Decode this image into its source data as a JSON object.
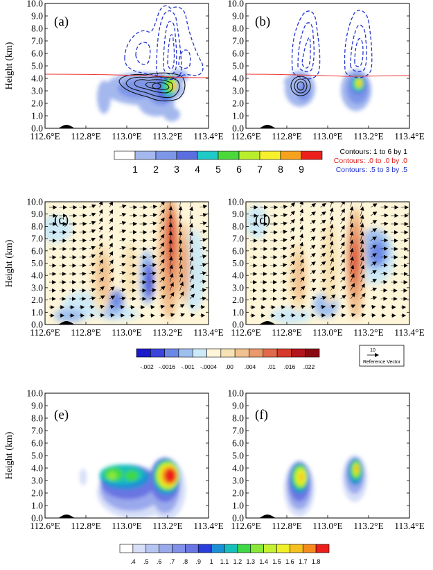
{
  "y_axis_label": "Height (km)",
  "y_ticks": [
    "0.0",
    "1.0",
    "2.0",
    "3.0",
    "4.0",
    "5.0",
    "6.0",
    "7.0",
    "8.0",
    "9.0",
    "10.0"
  ],
  "x_ticks": [
    "112.6°E",
    "112.8°E",
    "113.0°E",
    "113.2°E",
    "113.4°E"
  ],
  "panel_labels": [
    "(a)",
    "(b)",
    "(c)",
    "(d)",
    "(e)",
    "(f)"
  ],
  "colorbar_top": {
    "labels": [
      "1",
      "2",
      "3",
      "4",
      "5",
      "6",
      "7",
      "8",
      "9"
    ],
    "colors": [
      "#ffffff",
      "#a4b8ee",
      "#7e96e8",
      "#5a6ee0",
      "#1fc9c6",
      "#4bd83b",
      "#b9ee2c",
      "#f7f02a",
      "#f7a21e",
      "#ec1f1c"
    ]
  },
  "contour_notes": {
    "black": "Contours: 1 to 6 by 1",
    "red": "Contours: .0 to .0 by .0",
    "blue": "Contours: .5 to 3 by .5"
  },
  "colorbar_mid": {
    "labels": [
      "-.002",
      "-.0016",
      "-.001",
      "-.0004",
      ".00",
      ".004",
      ".01",
      ".016",
      ".022"
    ],
    "colors": [
      "#1a1acb",
      "#3a44dc",
      "#6a88e6",
      "#9ec0ef",
      "#cdeaf6",
      "#fff5d8",
      "#f8e2b4",
      "#f1c18f",
      "#e9996b",
      "#e06a4a",
      "#d63a2a",
      "#b2151c",
      "#8a0a14"
    ]
  },
  "reference_vector": {
    "value": "10",
    "label": "Reference Vector"
  },
  "colorbar_bottom": {
    "labels": [
      ".4",
      ".5",
      ".6",
      ".7",
      ".8",
      ".9",
      "1",
      "1.1",
      "1.2",
      "1.3",
      "1.4",
      "1.5",
      "1.6",
      "1.7",
      "1.8"
    ],
    "colors": [
      "#ffffff",
      "#d6def8",
      "#b6c4f2",
      "#9aa9ec",
      "#8190e8",
      "#6a74e2",
      "#2a3ddd",
      "#1b8fd6",
      "#17bfbc",
      "#3ed846",
      "#8ae838",
      "#c4f030",
      "#f0f028",
      "#f5c021",
      "#f58a1d",
      "#eb1f1c"
    ]
  },
  "chart_data": [
    {
      "panel": "(a)",
      "type": "heatmap",
      "xlim": [
        112.6,
        113.4
      ],
      "ylim": [
        0,
        10
      ],
      "ylabel": "Height (km)",
      "overlays": [
        "black solid contours",
        "blue dashed contours",
        "red line ~4.2 km"
      ]
    },
    {
      "panel": "(b)",
      "type": "heatmap",
      "xlim": [
        112.6,
        113.4
      ],
      "ylim": [
        0,
        10
      ],
      "overlays": [
        "black solid contours",
        "blue dashed contours",
        "red line ~4.2 km"
      ]
    },
    {
      "panel": "(c)",
      "type": "heatmap",
      "xlim": [
        112.6,
        113.4
      ],
      "ylim": [
        0,
        10
      ],
      "ylabel": "Height (km)",
      "overlays": [
        "wind vectors"
      ]
    },
    {
      "panel": "(d)",
      "type": "heatmap",
      "xlim": [
        112.6,
        113.4
      ],
      "ylim": [
        0,
        10
      ],
      "overlays": [
        "wind vectors"
      ]
    },
    {
      "panel": "(e)",
      "type": "heatmap",
      "xlim": [
        112.6,
        113.4
      ],
      "ylim": [
        0,
        10
      ],
      "ylabel": "Height (km)"
    },
    {
      "panel": "(f)",
      "type": "heatmap",
      "xlim": [
        112.6,
        113.4
      ],
      "ylim": [
        0,
        10
      ]
    }
  ]
}
